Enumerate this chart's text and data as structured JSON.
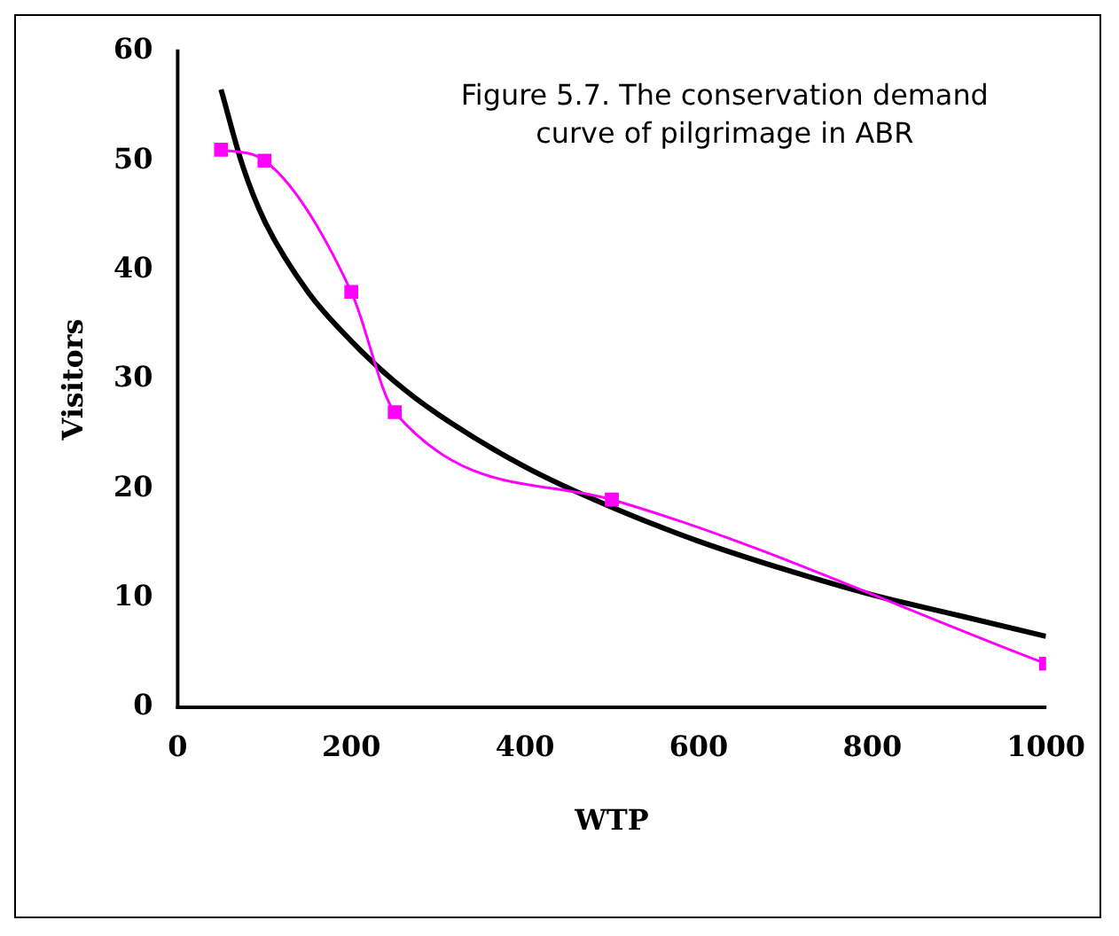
{
  "chart_data": {
    "type": "line",
    "title": "Figure 5.7. The conservation demand curve of pilgrimage in ABR",
    "xlabel": "WTP",
    "ylabel": "Visitors",
    "xlim": [
      0,
      1000
    ],
    "xticks": [
      0,
      200,
      400,
      600,
      800,
      1000
    ],
    "ylim": [
      0,
      60
    ],
    "yticks": [
      0,
      10,
      20,
      30,
      40,
      50,
      60
    ],
    "grid": false,
    "legend": false,
    "series": [
      {
        "color": "#ff00ff",
        "marker": "square",
        "x": [
          50,
          100,
          200,
          250,
          500,
          1000
        ],
        "values": [
          51,
          50,
          38,
          27,
          19,
          4
        ]
      },
      {
        "color": "#000000",
        "marker": "none",
        "x": [
          50,
          75,
          100,
          150,
          200,
          250,
          300,
          400,
          500,
          600,
          700,
          800,
          900,
          1000
        ],
        "values": [
          56.5,
          49.5,
          44.5,
          38,
          33.5,
          29.8,
          26.8,
          22,
          18.3,
          15.2,
          12.6,
          10.3,
          8.4,
          6.5
        ]
      }
    ]
  }
}
